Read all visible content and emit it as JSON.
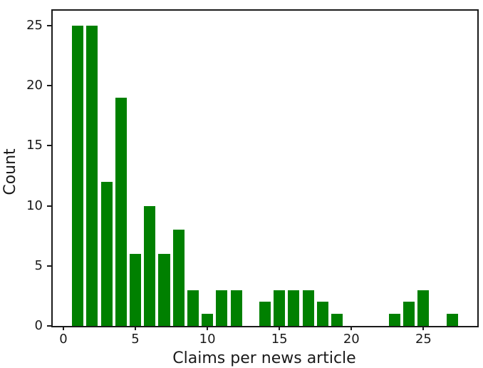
{
  "chart_data": {
    "type": "bar",
    "title": "",
    "xlabel": "Claims per news article",
    "ylabel": "Count",
    "x": [
      1,
      2,
      3,
      4,
      5,
      6,
      7,
      8,
      9,
      10,
      11,
      12,
      13,
      14,
      15,
      16,
      17,
      18,
      19,
      20,
      21,
      22,
      23,
      24,
      25,
      26,
      27
    ],
    "values": [
      25,
      25,
      12,
      19,
      6,
      10,
      6,
      8,
      3,
      1,
      3,
      3,
      0,
      2,
      3,
      3,
      3,
      2,
      1,
      0,
      0,
      0,
      1,
      2,
      3,
      0,
      1
    ],
    "bar_width": 0.8,
    "bar_color": "#008000",
    "axis_color": "#1a1a1a",
    "text_color": "#1a1a1a",
    "background_color": "#ffffff",
    "xticks": [
      0,
      5,
      10,
      15,
      20,
      25
    ],
    "yticks": [
      0,
      5,
      10,
      15,
      20,
      25
    ],
    "xlim": [
      -0.74,
      28.74
    ],
    "ylim": [
      0,
      26.25
    ],
    "grid": false,
    "legend": null
  }
}
